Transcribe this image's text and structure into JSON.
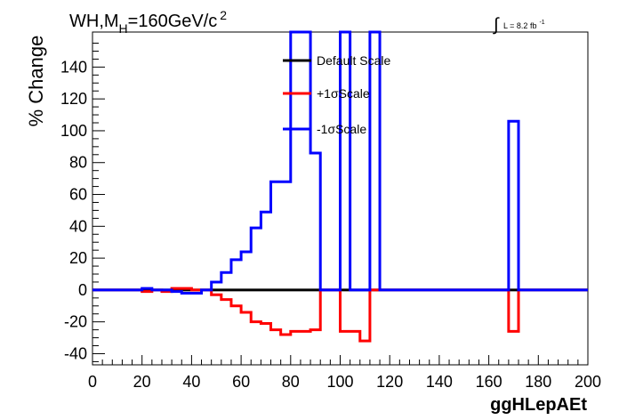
{
  "chart_data": {
    "type": "line",
    "title_parts": {
      "main": "WH,M",
      "sub": "H",
      "rest": "=160GeV/c",
      "sup": "2"
    },
    "lumi_label": {
      "integral": "∫",
      "text": "L = 8.2 fb",
      "sup": "-1"
    },
    "xlabel": "ggHLepAEt",
    "ylabel": "% Change",
    "xlim": [
      0,
      200
    ],
    "ylim": [
      -47,
      162
    ],
    "x_ticks": [
      0,
      20,
      40,
      60,
      80,
      100,
      120,
      140,
      160,
      180,
      200
    ],
    "x_tick_labels": [
      "0",
      "20",
      "40",
      "60",
      "80",
      "100",
      "120",
      "140",
      "160",
      "180",
      "200"
    ],
    "y_ticks": [
      -40,
      -20,
      0,
      20,
      40,
      60,
      80,
      100,
      120,
      140
    ],
    "y_tick_labels": [
      "-40",
      "-20",
      "0",
      "20",
      "40",
      "60",
      "80",
      "100",
      "120",
      "140"
    ],
    "bin_edges": [
      0,
      4,
      8,
      12,
      16,
      20,
      24,
      28,
      32,
      36,
      40,
      44,
      48,
      52,
      56,
      60,
      64,
      68,
      72,
      76,
      80,
      84,
      88,
      92,
      96,
      100,
      104,
      108,
      112,
      116,
      120,
      124,
      128,
      132,
      136,
      140,
      144,
      148,
      152,
      156,
      160,
      164,
      168,
      172,
      176,
      180,
      184,
      188,
      192,
      196,
      200
    ],
    "series": [
      {
        "name": "Default Scale",
        "color": "#000000",
        "values": [
          0,
          0,
          0,
          0,
          0,
          0,
          0,
          0,
          0,
          0,
          0,
          0,
          0,
          0,
          0,
          0,
          0,
          0,
          0,
          0,
          0,
          0,
          0,
          0,
          0,
          0,
          0,
          0,
          0,
          0,
          0,
          0,
          0,
          0,
          0,
          0,
          0,
          0,
          0,
          0,
          0,
          0,
          0,
          0,
          0,
          0,
          0,
          0,
          0,
          0
        ]
      },
      {
        "name": "+1σScale",
        "color": "#ff0000",
        "values": [
          0,
          0,
          0,
          0,
          0,
          -1,
          0,
          -1,
          1,
          1,
          0,
          0,
          -3,
          -6,
          -10,
          -14,
          -20,
          -21,
          -25,
          -28,
          -26,
          -26,
          -25,
          0,
          0,
          -26,
          -26,
          -32,
          0,
          0,
          0,
          0,
          0,
          0,
          0,
          0,
          0,
          0,
          0,
          0,
          0,
          0,
          -26,
          0,
          0,
          0,
          0,
          0,
          0,
          0
        ]
      },
      {
        "name": "-1σScale",
        "color": "#0000ff",
        "values": [
          0,
          0,
          0,
          0,
          0,
          1,
          0,
          0,
          -1,
          -2,
          -2,
          0,
          5,
          11,
          19,
          24,
          39,
          49,
          68,
          68,
          170,
          170,
          86,
          0,
          0,
          170,
          0,
          0,
          170,
          0,
          0,
          0,
          0,
          0,
          0,
          0,
          0,
          0,
          0,
          0,
          0,
          0,
          106,
          0,
          0,
          0,
          0,
          0,
          0,
          0
        ]
      }
    ],
    "legend_position": "top-center",
    "grid": false
  }
}
